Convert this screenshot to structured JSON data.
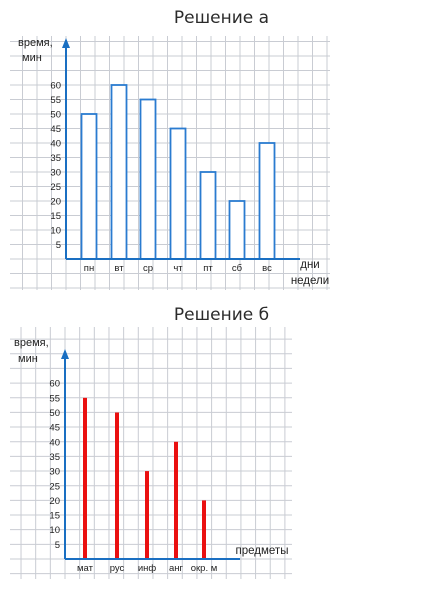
{
  "charts": {
    "a": {
      "heading": "Решение а"
    },
    "b": {
      "heading": "Решение б"
    }
  },
  "colors": {
    "axis": "#1a6fc2",
    "bar_a_outline": "#2a7bd0",
    "bar_b_fill": "#ea1010",
    "grid": "#c9ccd3"
  },
  "chart_data": [
    {
      "type": "bar",
      "title": "Решение а",
      "ylabel": [
        "время,",
        "мин"
      ],
      "xlabel": [
        "дни",
        "недели"
      ],
      "categories": [
        "пн",
        "вт",
        "ср",
        "чт",
        "пт",
        "сб",
        "вс"
      ],
      "values": [
        50,
        60,
        55,
        45,
        30,
        20,
        40
      ],
      "yticks": [
        5,
        10,
        15,
        20,
        25,
        30,
        35,
        40,
        45,
        50,
        55,
        60
      ],
      "ylim": [
        0,
        60
      ],
      "grid": true,
      "style": "outlined bars"
    },
    {
      "type": "bar",
      "title": "Решение б",
      "ylabel": [
        "время,",
        "мин"
      ],
      "xlabel": [
        "предметы"
      ],
      "categories": [
        "мат",
        "рус",
        "инф",
        "анг",
        "окр. м"
      ],
      "values": [
        55,
        50,
        30,
        40,
        20
      ],
      "yticks": [
        5,
        10,
        15,
        20,
        25,
        30,
        35,
        40,
        45,
        50,
        55,
        60
      ],
      "ylim": [
        0,
        60
      ],
      "grid": true,
      "style": "thin filled bars"
    }
  ]
}
